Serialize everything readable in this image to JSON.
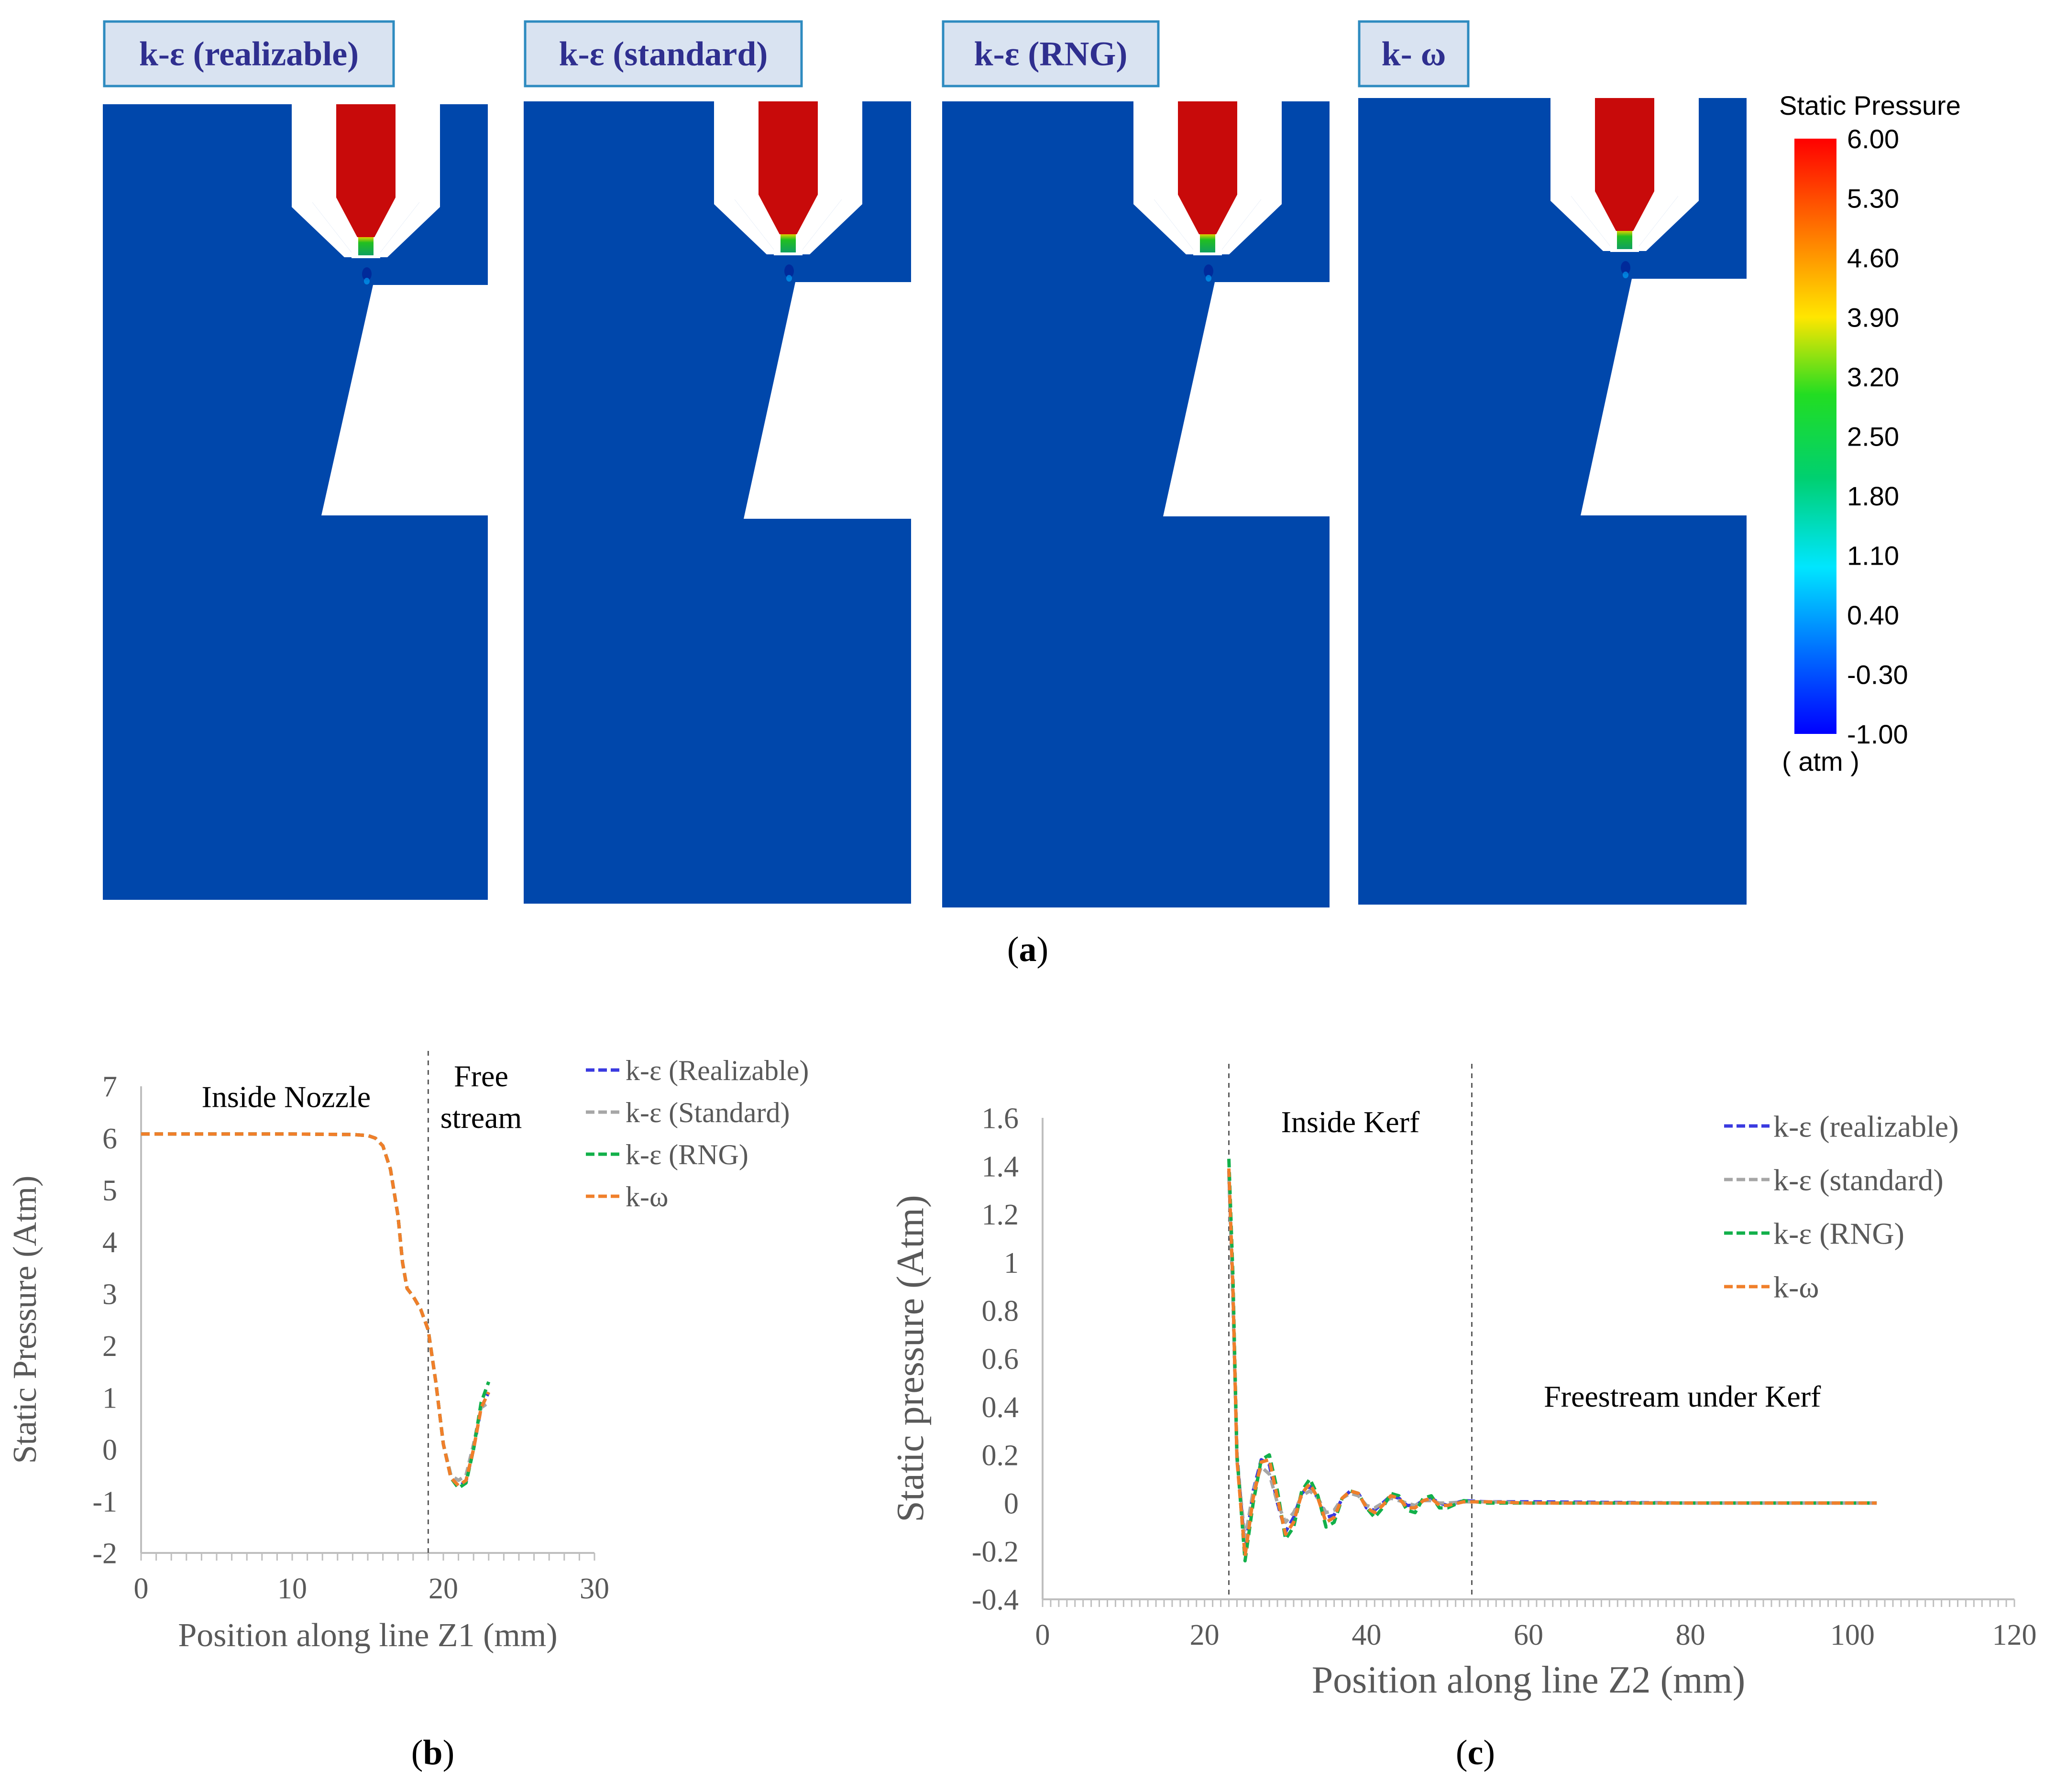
{
  "colors": {
    "fluid": "#0047AB",
    "nozzle_core": "#C80A0A",
    "label_fill": "#D9E3F1",
    "label_border": "#2E8BC0",
    "label_text": "#2F2F8F",
    "series": [
      "#3A3AE0",
      "#A6A6A6",
      "#12B04A",
      "#F07F2A"
    ]
  },
  "panel_a": {
    "caption": "(a)",
    "caption_letter": "a",
    "contours": [
      {
        "label": "k-ε (realizable)"
      },
      {
        "label": "k-ε (standard)"
      },
      {
        "label": "k-ε (RNG)"
      },
      {
        "label": "k- ω"
      }
    ],
    "colorbar": {
      "title": "Static Pressure",
      "unit": "( atm )",
      "ticks": [
        "6.00",
        "5.30",
        "4.60",
        "3.90",
        "3.20",
        "2.50",
        "1.80",
        "1.10",
        "0.40",
        "-0.30",
        "-1.00"
      ],
      "min": -1.0,
      "max": 6.0
    }
  },
  "chart_data": [
    {
      "id": "b",
      "type": "line",
      "caption": "(b)",
      "caption_letter": "b",
      "xlabel": "Position along line Z1 (mm)",
      "ylabel": "Static Pressure (Atm)",
      "xlim": [
        0,
        30
      ],
      "ylim": [
        -2,
        7
      ],
      "xticks": [
        0,
        10,
        20,
        30
      ],
      "yticks": [
        -2,
        -1,
        0,
        1,
        2,
        3,
        4,
        5,
        6,
        7
      ],
      "vlines": [
        19
      ],
      "annotations": [
        {
          "text": "Inside Nozzle",
          "x": 9.6,
          "y": 6.6
        },
        {
          "text": "Free",
          "x": 22.5,
          "y": 7.0
        },
        {
          "text": "stream",
          "x": 22.5,
          "y": 6.2
        }
      ],
      "legend": [
        "k-ε (Realizable)",
        "k-ε (Standard)",
        "k-ε (RNG)",
        "k-ω"
      ],
      "series": [
        {
          "name": "k-ε (Realizable)",
          "x": [
            0,
            5,
            10,
            14,
            15,
            15.5,
            16,
            16.5,
            17,
            17.3,
            17.6,
            18,
            18.5,
            19,
            19.5,
            20,
            20.5,
            21,
            21.5,
            22,
            22.5,
            23
          ],
          "y": [
            6.08,
            6.08,
            6.08,
            6.07,
            6.05,
            6.0,
            5.85,
            5.4,
            4.5,
            3.6,
            3.1,
            2.95,
            2.7,
            2.3,
            1.3,
            0.1,
            -0.55,
            -0.72,
            -0.62,
            0.0,
            0.8,
            1.1
          ]
        },
        {
          "name": "k-ε (Standard)",
          "x": [
            0,
            5,
            10,
            14,
            15,
            15.5,
            16,
            16.5,
            17,
            17.3,
            17.6,
            18,
            18.5,
            19,
            19.5,
            20,
            20.5,
            21,
            21.5,
            22,
            22.5,
            23
          ],
          "y": [
            6.08,
            6.08,
            6.08,
            6.07,
            6.05,
            6.0,
            5.85,
            5.4,
            4.5,
            3.6,
            3.1,
            2.95,
            2.7,
            2.3,
            1.3,
            0.1,
            -0.5,
            -0.6,
            -0.5,
            0.1,
            0.8,
            0.9
          ]
        },
        {
          "name": "k-ε (RNG)",
          "x": [
            0,
            5,
            10,
            14,
            15,
            15.5,
            16,
            16.5,
            17,
            17.3,
            17.6,
            18,
            18.5,
            19,
            19.5,
            20,
            20.5,
            21,
            21.5,
            22,
            22.5,
            23
          ],
          "y": [
            6.08,
            6.08,
            6.08,
            6.07,
            6.05,
            6.0,
            5.85,
            5.4,
            4.5,
            3.6,
            3.1,
            2.95,
            2.7,
            2.3,
            1.3,
            0.1,
            -0.55,
            -0.75,
            -0.65,
            0.0,
            0.9,
            1.3
          ]
        },
        {
          "name": "k-ω",
          "x": [
            0,
            5,
            10,
            14,
            15,
            15.5,
            16,
            16.5,
            17,
            17.3,
            17.6,
            18,
            18.5,
            19,
            19.5,
            20,
            20.5,
            21,
            21.5,
            22,
            22.5,
            23
          ],
          "y": [
            6.08,
            6.08,
            6.08,
            6.07,
            6.05,
            6.0,
            5.85,
            5.4,
            4.5,
            3.6,
            3.1,
            2.95,
            2.7,
            2.3,
            1.3,
            0.1,
            -0.55,
            -0.7,
            -0.6,
            0.0,
            0.8,
            1.1
          ]
        }
      ]
    },
    {
      "id": "c",
      "type": "line",
      "caption": "(c)",
      "caption_letter": "c",
      "xlabel": "Position along line Z2 (mm)",
      "ylabel": "Static pressure (Atm)",
      "xlim": [
        0,
        120
      ],
      "ylim": [
        -0.4,
        1.6
      ],
      "xticks": [
        0,
        20,
        40,
        60,
        80,
        100,
        120
      ],
      "yticks": [
        -0.4,
        -0.2,
        0,
        0.2,
        0.4,
        0.6,
        0.8,
        1,
        1.2,
        1.4,
        1.6
      ],
      "ytick_labels": [
        "-0.4",
        "-0.2",
        "0",
        "0.2",
        "0.4",
        "0.6",
        "0.8",
        "1",
        "1.2",
        "1.4",
        "1.6"
      ],
      "vlines": [
        23,
        53
      ],
      "annotations": [
        {
          "text": "Inside Kerf",
          "x": 38,
          "y": 1.54
        },
        {
          "text": "Freestream under Kerf",
          "x": 79,
          "y": 0.4
        }
      ],
      "legend": [
        "k-ε (realizable)",
        "k-ε (standard)",
        "k-ε (RNG)",
        "k-ω"
      ],
      "series": [
        {
          "name": "k-ε (realizable)",
          "x": [
            23,
            23.5,
            24,
            25,
            26,
            27,
            28,
            29,
            30,
            31,
            32,
            33,
            34,
            35,
            36,
            37,
            38,
            39,
            40,
            41,
            42,
            43,
            44,
            45,
            46,
            47,
            48,
            49,
            50,
            52,
            55,
            60,
            80,
            103
          ],
          "y": [
            1.38,
            0.9,
            0.2,
            -0.2,
            0.05,
            0.18,
            0.16,
            0.0,
            -0.12,
            -0.06,
            0.04,
            0.07,
            0.02,
            -0.06,
            -0.05,
            0.02,
            0.05,
            0.04,
            -0.02,
            -0.03,
            0.0,
            0.03,
            0.02,
            -0.01,
            -0.01,
            0.01,
            0.02,
            0.0,
            -0.01,
            0.01,
            0.005,
            0.005,
            0.0,
            0.0
          ]
        },
        {
          "name": "k-ε (standard)",
          "x": [
            23,
            23.5,
            24,
            25,
            26,
            27,
            28,
            29,
            30,
            31,
            32,
            33,
            34,
            35,
            36,
            37,
            38,
            39,
            40,
            41,
            42,
            43,
            44,
            45,
            46,
            47,
            48,
            49,
            50,
            52,
            55,
            60,
            80,
            103
          ],
          "y": [
            1.36,
            0.85,
            0.18,
            -0.15,
            0.05,
            0.15,
            0.12,
            0.0,
            -0.08,
            -0.04,
            0.03,
            0.05,
            0.02,
            -0.04,
            -0.03,
            0.02,
            0.04,
            0.03,
            -0.01,
            -0.02,
            0.0,
            0.02,
            0.01,
            0.0,
            -0.01,
            0.01,
            0.01,
            0.0,
            0.0,
            0.005,
            0.005,
            0.0,
            0.0,
            0.0
          ]
        },
        {
          "name": "k-ε (RNG)",
          "x": [
            23,
            23.5,
            24,
            25,
            26,
            27,
            28,
            29,
            30,
            31,
            32,
            33,
            34,
            35,
            36,
            37,
            38,
            39,
            40,
            41,
            42,
            43,
            44,
            45,
            46,
            47,
            48,
            49,
            50,
            52,
            55,
            60,
            80,
            103
          ],
          "y": [
            1.43,
            0.95,
            0.2,
            -0.24,
            0.0,
            0.18,
            0.2,
            0.05,
            -0.15,
            -0.1,
            0.05,
            0.1,
            0.03,
            -0.1,
            -0.08,
            0.02,
            0.05,
            0.04,
            -0.02,
            -0.06,
            -0.02,
            0.04,
            0.03,
            -0.03,
            -0.04,
            0.02,
            0.03,
            -0.02,
            -0.02,
            0.01,
            0.0,
            0.0,
            0.0,
            0.0
          ]
        },
        {
          "name": "k-ω",
          "x": [
            23,
            23.5,
            24,
            25,
            26,
            27,
            28,
            29,
            30,
            31,
            32,
            33,
            34,
            35,
            36,
            37,
            38,
            39,
            40,
            41,
            42,
            43,
            44,
            45,
            46,
            47,
            48,
            49,
            50,
            52,
            55,
            60,
            80,
            103
          ],
          "y": [
            1.39,
            0.9,
            0.18,
            -0.22,
            0.02,
            0.17,
            0.18,
            0.02,
            -0.13,
            -0.08,
            0.04,
            0.08,
            0.02,
            -0.08,
            -0.06,
            0.02,
            0.05,
            0.04,
            -0.02,
            -0.04,
            -0.01,
            0.03,
            0.02,
            -0.02,
            -0.02,
            0.01,
            0.02,
            -0.01,
            -0.01,
            0.005,
            0.005,
            0.0,
            0.0,
            0.0
          ]
        }
      ]
    }
  ]
}
